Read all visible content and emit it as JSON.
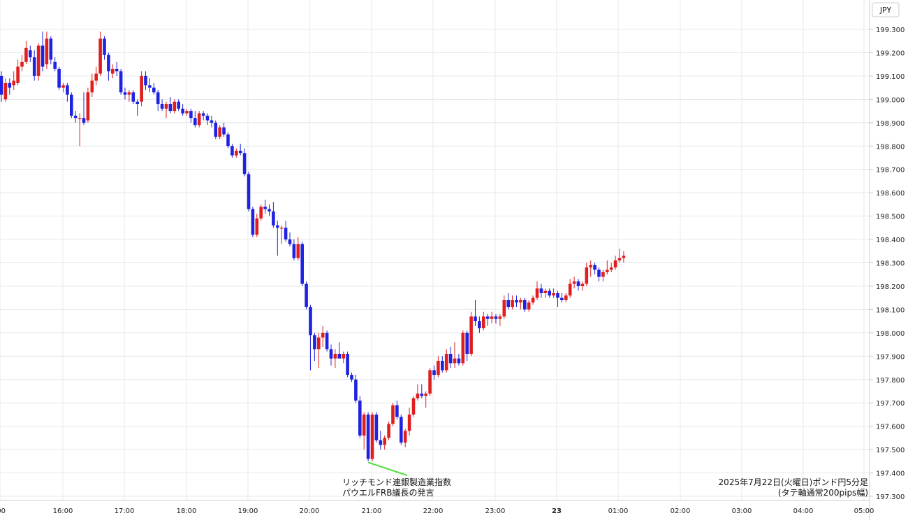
{
  "chart_data": {
    "type": "candlestick",
    "currency_label": "JPY",
    "y_ticks": [
      "199.300",
      "199.200",
      "199.100",
      "199.000",
      "198.900",
      "198.800",
      "198.700",
      "198.600",
      "198.500",
      "198.400",
      "198.300",
      "198.200",
      "198.100",
      "198.000",
      "197.900",
      "197.800",
      "197.700",
      "197.600",
      "197.500",
      "197.400",
      "197.300"
    ],
    "ylim": [
      197.3,
      199.3
    ],
    "x_ticks": [
      ":00",
      "16:00",
      "17:00",
      "18:00",
      "19:00",
      "20:00",
      "21:00",
      "22:00",
      "23:00",
      "23",
      "01:00",
      "02:00",
      "03:00",
      "04:00",
      "05:00"
    ],
    "grid": true,
    "annotation": {
      "line1": "リッチモンド連銀製造業指数",
      "line2": "パウエルFRB議長の発言",
      "target_price": 197.445
    },
    "info": {
      "line1": "2025年7月22日(火曜日)ポンド円5分足",
      "line2": "(タテ軸通常200pips幅)"
    },
    "colors": {
      "up": "#e01e1e",
      "down": "#1f22e0",
      "grid": "#e4e8ec",
      "annotation_line": "#55e03c"
    },
    "candles": [
      {
        "o": 199.1,
        "h": 199.12,
        "l": 198.99,
        "c": 199.02
      },
      {
        "o": 199.0,
        "h": 199.09,
        "l": 198.99,
        "c": 199.07
      },
      {
        "o": 199.07,
        "h": 199.09,
        "l": 199.02,
        "c": 199.05
      },
      {
        "o": 199.06,
        "h": 199.12,
        "l": 199.04,
        "c": 199.08
      },
      {
        "o": 199.07,
        "h": 199.17,
        "l": 199.06,
        "c": 199.14
      },
      {
        "o": 199.14,
        "h": 199.19,
        "l": 199.12,
        "c": 199.16
      },
      {
        "o": 199.16,
        "h": 199.25,
        "l": 199.15,
        "c": 199.22
      },
      {
        "o": 199.21,
        "h": 199.23,
        "l": 199.16,
        "c": 199.18
      },
      {
        "o": 199.18,
        "h": 199.21,
        "l": 199.08,
        "c": 199.1
      },
      {
        "o": 199.1,
        "h": 199.24,
        "l": 199.08,
        "c": 199.23
      },
      {
        "o": 199.23,
        "h": 199.29,
        "l": 199.12,
        "c": 199.14
      },
      {
        "o": 199.15,
        "h": 199.29,
        "l": 199.13,
        "c": 199.26
      },
      {
        "o": 199.26,
        "h": 199.27,
        "l": 199.15,
        "c": 199.17
      },
      {
        "o": 199.16,
        "h": 199.18,
        "l": 199.12,
        "c": 199.13
      },
      {
        "o": 199.13,
        "h": 199.14,
        "l": 199.04,
        "c": 199.05
      },
      {
        "o": 199.05,
        "h": 199.07,
        "l": 199.03,
        "c": 199.06
      },
      {
        "o": 199.06,
        "h": 199.07,
        "l": 198.99,
        "c": 199.02
      },
      {
        "o": 199.02,
        "h": 199.03,
        "l": 198.92,
        "c": 198.93
      },
      {
        "o": 198.93,
        "h": 198.95,
        "l": 198.9,
        "c": 198.92
      },
      {
        "o": 198.92,
        "h": 198.94,
        "l": 198.8,
        "c": 198.92
      },
      {
        "o": 198.92,
        "h": 199.03,
        "l": 198.89,
        "c": 198.9
      },
      {
        "o": 198.91,
        "h": 199.05,
        "l": 198.9,
        "c": 199.03
      },
      {
        "o": 199.03,
        "h": 199.11,
        "l": 199.01,
        "c": 199.08
      },
      {
        "o": 199.08,
        "h": 199.14,
        "l": 199.06,
        "c": 199.11
      },
      {
        "o": 199.11,
        "h": 199.29,
        "l": 199.1,
        "c": 199.26
      },
      {
        "o": 199.26,
        "h": 199.27,
        "l": 199.17,
        "c": 199.19
      },
      {
        "o": 199.19,
        "h": 199.2,
        "l": 199.08,
        "c": 199.12
      },
      {
        "o": 199.11,
        "h": 199.15,
        "l": 199.09,
        "c": 199.13
      },
      {
        "o": 199.13,
        "h": 199.16,
        "l": 199.1,
        "c": 199.12
      },
      {
        "o": 199.12,
        "h": 199.13,
        "l": 199.02,
        "c": 199.03
      },
      {
        "o": 199.03,
        "h": 199.05,
        "l": 199.0,
        "c": 199.02
      },
      {
        "o": 199.02,
        "h": 199.04,
        "l": 198.99,
        "c": 199.03
      },
      {
        "o": 199.03,
        "h": 199.04,
        "l": 198.98,
        "c": 198.99
      },
      {
        "o": 198.99,
        "h": 199.0,
        "l": 198.93,
        "c": 198.98
      },
      {
        "o": 198.99,
        "h": 199.12,
        "l": 198.97,
        "c": 199.1
      },
      {
        "o": 199.1,
        "h": 199.12,
        "l": 199.04,
        "c": 199.06
      },
      {
        "o": 199.06,
        "h": 199.09,
        "l": 199.03,
        "c": 199.05
      },
      {
        "o": 199.05,
        "h": 199.07,
        "l": 199.02,
        "c": 199.03
      },
      {
        "o": 199.03,
        "h": 199.04,
        "l": 198.95,
        "c": 198.98
      },
      {
        "o": 198.98,
        "h": 199.0,
        "l": 198.95,
        "c": 198.96
      },
      {
        "o": 198.96,
        "h": 198.99,
        "l": 198.92,
        "c": 198.98
      },
      {
        "o": 198.98,
        "h": 199.01,
        "l": 198.94,
        "c": 198.95
      },
      {
        "o": 198.95,
        "h": 199.0,
        "l": 198.94,
        "c": 198.99
      },
      {
        "o": 198.99,
        "h": 199.0,
        "l": 198.95,
        "c": 198.96
      },
      {
        "o": 198.96,
        "h": 198.98,
        "l": 198.93,
        "c": 198.94
      },
      {
        "o": 198.94,
        "h": 198.96,
        "l": 198.93,
        "c": 198.95
      },
      {
        "o": 198.95,
        "h": 198.96,
        "l": 198.9,
        "c": 198.92
      },
      {
        "o": 198.92,
        "h": 198.95,
        "l": 198.88,
        "c": 198.89
      },
      {
        "o": 198.89,
        "h": 198.95,
        "l": 198.88,
        "c": 198.94
      },
      {
        "o": 198.94,
        "h": 198.95,
        "l": 198.91,
        "c": 198.93
      },
      {
        "o": 198.93,
        "h": 198.94,
        "l": 198.89,
        "c": 198.91
      },
      {
        "o": 198.91,
        "h": 198.93,
        "l": 198.88,
        "c": 198.9
      },
      {
        "o": 198.9,
        "h": 198.91,
        "l": 198.83,
        "c": 198.84
      },
      {
        "o": 198.84,
        "h": 198.89,
        "l": 198.83,
        "c": 198.88
      },
      {
        "o": 198.88,
        "h": 198.9,
        "l": 198.84,
        "c": 198.85
      },
      {
        "o": 198.85,
        "h": 198.86,
        "l": 198.79,
        "c": 198.8
      },
      {
        "o": 198.8,
        "h": 198.81,
        "l": 198.75,
        "c": 198.76
      },
      {
        "o": 198.76,
        "h": 198.79,
        "l": 198.75,
        "c": 198.78
      },
      {
        "o": 198.78,
        "h": 198.81,
        "l": 198.76,
        "c": 198.77
      },
      {
        "o": 198.77,
        "h": 198.79,
        "l": 198.67,
        "c": 198.68
      },
      {
        "o": 198.68,
        "h": 198.69,
        "l": 198.52,
        "c": 198.53
      },
      {
        "o": 198.53,
        "h": 198.54,
        "l": 198.41,
        "c": 198.42
      },
      {
        "o": 198.42,
        "h": 198.51,
        "l": 198.41,
        "c": 198.49
      },
      {
        "o": 198.49,
        "h": 198.55,
        "l": 198.48,
        "c": 198.54
      },
      {
        "o": 198.54,
        "h": 198.57,
        "l": 198.51,
        "c": 198.53
      },
      {
        "o": 198.53,
        "h": 198.55,
        "l": 198.5,
        "c": 198.52
      },
      {
        "o": 198.52,
        "h": 198.56,
        "l": 198.45,
        "c": 198.46
      },
      {
        "o": 198.46,
        "h": 198.48,
        "l": 198.33,
        "c": 198.45
      },
      {
        "o": 198.45,
        "h": 198.46,
        "l": 198.38,
        "c": 198.45
      },
      {
        "o": 198.45,
        "h": 198.48,
        "l": 198.39,
        "c": 198.4
      },
      {
        "o": 198.4,
        "h": 198.43,
        "l": 198.37,
        "c": 198.38
      },
      {
        "o": 198.38,
        "h": 198.4,
        "l": 198.31,
        "c": 198.32
      },
      {
        "o": 198.32,
        "h": 198.41,
        "l": 198.31,
        "c": 198.38
      },
      {
        "o": 198.38,
        "h": 198.39,
        "l": 198.2,
        "c": 198.21
      },
      {
        "o": 198.21,
        "h": 198.22,
        "l": 198.1,
        "c": 198.11
      },
      {
        "o": 198.11,
        "h": 198.12,
        "l": 197.84,
        "c": 197.99
      },
      {
        "o": 197.99,
        "h": 198.0,
        "l": 197.88,
        "c": 197.93
      },
      {
        "o": 197.93,
        "h": 198.0,
        "l": 197.85,
        "c": 197.98
      },
      {
        "o": 197.98,
        "h": 198.03,
        "l": 197.94,
        "c": 198.0
      },
      {
        "o": 198.0,
        "h": 198.01,
        "l": 197.92,
        "c": 197.93
      },
      {
        "o": 197.93,
        "h": 197.95,
        "l": 197.86,
        "c": 197.89
      },
      {
        "o": 197.89,
        "h": 197.93,
        "l": 197.85,
        "c": 197.91
      },
      {
        "o": 197.91,
        "h": 197.96,
        "l": 197.89,
        "c": 197.89
      },
      {
        "o": 197.89,
        "h": 197.92,
        "l": 197.87,
        "c": 197.91
      },
      {
        "o": 197.91,
        "h": 197.92,
        "l": 197.81,
        "c": 197.82
      },
      {
        "o": 197.82,
        "h": 197.83,
        "l": 197.79,
        "c": 197.8
      },
      {
        "o": 197.8,
        "h": 197.82,
        "l": 197.7,
        "c": 197.71
      },
      {
        "o": 197.71,
        "h": 197.73,
        "l": 197.55,
        "c": 197.56
      },
      {
        "o": 197.56,
        "h": 197.66,
        "l": 197.5,
        "c": 197.65
      },
      {
        "o": 197.65,
        "h": 197.66,
        "l": 197.45,
        "c": 197.46
      },
      {
        "o": 197.46,
        "h": 197.66,
        "l": 197.45,
        "c": 197.65
      },
      {
        "o": 197.65,
        "h": 197.66,
        "l": 197.53,
        "c": 197.54
      },
      {
        "o": 197.54,
        "h": 197.58,
        "l": 197.5,
        "c": 197.52
      },
      {
        "o": 197.52,
        "h": 197.56,
        "l": 197.5,
        "c": 197.55
      },
      {
        "o": 197.55,
        "h": 197.62,
        "l": 197.54,
        "c": 197.61
      },
      {
        "o": 197.61,
        "h": 197.7,
        "l": 197.6,
        "c": 197.69
      },
      {
        "o": 197.69,
        "h": 197.71,
        "l": 197.63,
        "c": 197.64
      },
      {
        "o": 197.64,
        "h": 197.65,
        "l": 197.52,
        "c": 197.53
      },
      {
        "o": 197.53,
        "h": 197.59,
        "l": 197.51,
        "c": 197.58
      },
      {
        "o": 197.58,
        "h": 197.68,
        "l": 197.56,
        "c": 197.65
      },
      {
        "o": 197.65,
        "h": 197.73,
        "l": 197.64,
        "c": 197.72
      },
      {
        "o": 197.72,
        "h": 197.78,
        "l": 197.71,
        "c": 197.74
      },
      {
        "o": 197.74,
        "h": 197.78,
        "l": 197.72,
        "c": 197.73
      },
      {
        "o": 197.73,
        "h": 197.75,
        "l": 197.68,
        "c": 197.74
      },
      {
        "o": 197.74,
        "h": 197.85,
        "l": 197.73,
        "c": 197.84
      },
      {
        "o": 197.84,
        "h": 197.86,
        "l": 197.8,
        "c": 197.82
      },
      {
        "o": 197.82,
        "h": 197.9,
        "l": 197.81,
        "c": 197.88
      },
      {
        "o": 197.88,
        "h": 197.9,
        "l": 197.83,
        "c": 197.84
      },
      {
        "o": 197.84,
        "h": 197.93,
        "l": 197.83,
        "c": 197.91
      },
      {
        "o": 197.91,
        "h": 197.94,
        "l": 197.85,
        "c": 197.87
      },
      {
        "o": 197.87,
        "h": 197.96,
        "l": 197.85,
        "c": 197.89
      },
      {
        "o": 197.89,
        "h": 197.91,
        "l": 197.86,
        "c": 197.87
      },
      {
        "o": 197.87,
        "h": 198.01,
        "l": 197.86,
        "c": 198.0
      },
      {
        "o": 198.0,
        "h": 198.01,
        "l": 197.88,
        "c": 197.91
      },
      {
        "o": 197.91,
        "h": 198.09,
        "l": 197.9,
        "c": 198.07
      },
      {
        "o": 198.07,
        "h": 198.14,
        "l": 198.03,
        "c": 198.05
      },
      {
        "o": 198.05,
        "h": 198.07,
        "l": 198.0,
        "c": 198.02
      },
      {
        "o": 198.02,
        "h": 198.09,
        "l": 198.01,
        "c": 198.07
      },
      {
        "o": 198.07,
        "h": 198.08,
        "l": 198.03,
        "c": 198.06
      },
      {
        "o": 198.06,
        "h": 198.09,
        "l": 198.04,
        "c": 198.07
      },
      {
        "o": 198.07,
        "h": 198.08,
        "l": 198.04,
        "c": 198.06
      },
      {
        "o": 198.06,
        "h": 198.08,
        "l": 198.03,
        "c": 198.07
      },
      {
        "o": 198.07,
        "h": 198.16,
        "l": 198.06,
        "c": 198.14
      },
      {
        "o": 198.14,
        "h": 198.17,
        "l": 198.1,
        "c": 198.11
      },
      {
        "o": 198.11,
        "h": 198.16,
        "l": 198.1,
        "c": 198.14
      },
      {
        "o": 198.14,
        "h": 198.16,
        "l": 198.11,
        "c": 198.13
      },
      {
        "o": 198.13,
        "h": 198.15,
        "l": 198.1,
        "c": 198.14
      },
      {
        "o": 198.14,
        "h": 198.15,
        "l": 198.09,
        "c": 198.1
      },
      {
        "o": 198.1,
        "h": 198.14,
        "l": 198.09,
        "c": 198.13
      },
      {
        "o": 198.13,
        "h": 198.16,
        "l": 198.12,
        "c": 198.15
      },
      {
        "o": 198.15,
        "h": 198.22,
        "l": 198.14,
        "c": 198.19
      },
      {
        "o": 198.19,
        "h": 198.21,
        "l": 198.15,
        "c": 198.17
      },
      {
        "o": 198.17,
        "h": 198.19,
        "l": 198.15,
        "c": 198.18
      },
      {
        "o": 198.18,
        "h": 198.19,
        "l": 198.15,
        "c": 198.16
      },
      {
        "o": 198.16,
        "h": 198.19,
        "l": 198.15,
        "c": 198.17
      },
      {
        "o": 198.17,
        "h": 198.18,
        "l": 198.11,
        "c": 198.15
      },
      {
        "o": 198.15,
        "h": 198.17,
        "l": 198.13,
        "c": 198.14
      },
      {
        "o": 198.14,
        "h": 198.17,
        "l": 198.13,
        "c": 198.16
      },
      {
        "o": 198.16,
        "h": 198.23,
        "l": 198.15,
        "c": 198.21
      },
      {
        "o": 198.21,
        "h": 198.24,
        "l": 198.19,
        "c": 198.22
      },
      {
        "o": 198.22,
        "h": 198.23,
        "l": 198.18,
        "c": 198.2
      },
      {
        "o": 198.2,
        "h": 198.22,
        "l": 198.18,
        "c": 198.21
      },
      {
        "o": 198.21,
        "h": 198.3,
        "l": 198.2,
        "c": 198.28
      },
      {
        "o": 198.28,
        "h": 198.31,
        "l": 198.24,
        "c": 198.29
      },
      {
        "o": 198.29,
        "h": 198.3,
        "l": 198.25,
        "c": 198.27
      },
      {
        "o": 198.27,
        "h": 198.28,
        "l": 198.22,
        "c": 198.24
      },
      {
        "o": 198.24,
        "h": 198.27,
        "l": 198.22,
        "c": 198.26
      },
      {
        "o": 198.26,
        "h": 198.31,
        "l": 198.25,
        "c": 198.27
      },
      {
        "o": 198.27,
        "h": 198.3,
        "l": 198.26,
        "c": 198.28
      },
      {
        "o": 198.28,
        "h": 198.33,
        "l": 198.27,
        "c": 198.31
      },
      {
        "o": 198.31,
        "h": 198.36,
        "l": 198.3,
        "c": 198.32
      },
      {
        "o": 198.32,
        "h": 198.35,
        "l": 198.3,
        "c": 198.33
      }
    ]
  }
}
